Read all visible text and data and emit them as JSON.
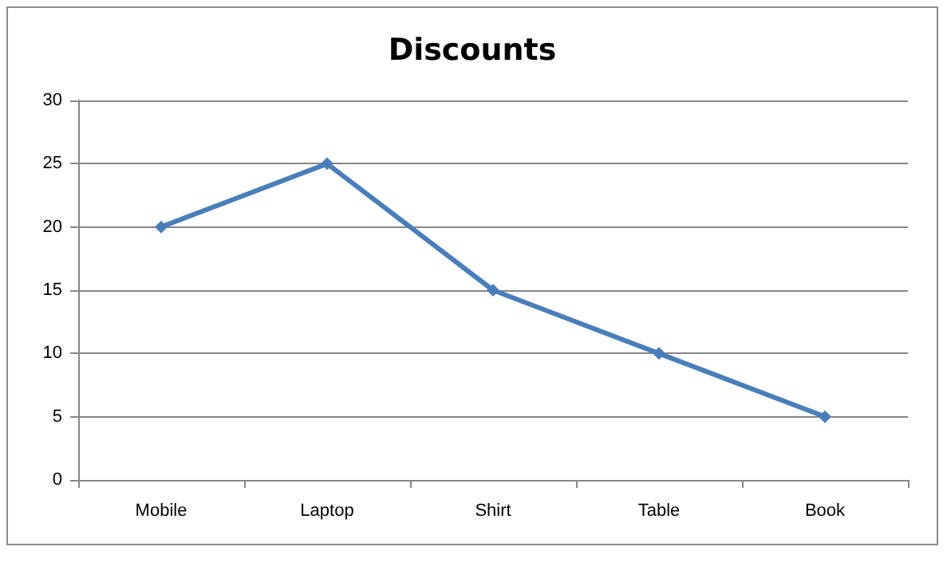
{
  "chart_data": {
    "type": "line",
    "title": "Discounts",
    "categories": [
      "Mobile",
      "Laptop",
      "Shirt",
      "Table",
      "Book"
    ],
    "series": [
      {
        "color": "#4a7ebb",
        "values": [
          20,
          25,
          15,
          10,
          5
        ]
      }
    ],
    "ylim": [
      0,
      30
    ],
    "yticks": [
      0,
      5,
      10,
      15,
      20,
      25,
      30
    ],
    "grid": "y",
    "marker": "diamond",
    "line_style": "solid"
  }
}
